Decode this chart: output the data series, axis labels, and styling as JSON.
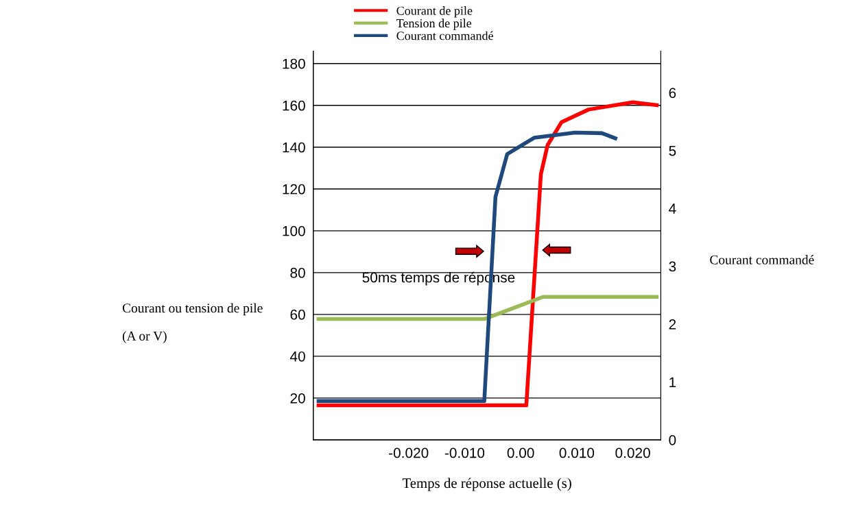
{
  "chart_data": {
    "type": "line",
    "xlabel": "Temps de réponse actuelle (s)",
    "ylabel": "Courant ou tension de pile\n\n(A or V)",
    "y2label": "Courant commandé",
    "annotations": [
      "50ms temps de réponse"
    ],
    "xlim": [
      -0.037,
      0.025
    ],
    "xticks": [
      {
        "value": -0.02,
        "label": "-0.020"
      },
      {
        "value": -0.01,
        "label": "-0.010"
      },
      {
        "value": 0.0,
        "label": "0.00"
      },
      {
        "value": 0.01,
        "label": "0.010"
      },
      {
        "value": 0.02,
        "label": "0.020"
      }
    ],
    "ylim": [
      0,
      186
    ],
    "yticks": [
      20,
      40,
      60,
      80,
      100,
      120,
      140,
      160,
      180
    ],
    "y2lim": [
      0,
      6.72
    ],
    "y2ticks": [
      0,
      1,
      2,
      3,
      4,
      5,
      6
    ],
    "grid": "y",
    "legend": "top",
    "series": [
      {
        "name": "Courant de pile",
        "color": "#ff0000",
        "x": [
          -0.0364,
          0.001,
          0.0036,
          0.0048,
          0.0073,
          0.0121,
          0.02,
          0.0246
        ],
        "values": [
          16.5,
          16.5,
          127,
          141,
          152,
          158,
          161.5,
          160
        ]
      },
      {
        "name": "Tension de pile",
        "color": "#9bbb59",
        "x": [
          -0.0364,
          -0.0065,
          0.004,
          0.0246
        ],
        "values": [
          57.8,
          57.8,
          68.4,
          68.4
        ]
      },
      {
        "name": "Courant commandé",
        "color": "#1f497d",
        "axis": "y2",
        "x": [
          -0.0364,
          -0.0065,
          -0.0045,
          -0.0024,
          0.0024,
          0.0097,
          0.0145,
          0.0172
        ],
        "values": [
          0.67,
          0.67,
          4.2,
          4.94,
          5.22,
          5.31,
          5.3,
          5.2
        ]
      }
    ]
  }
}
